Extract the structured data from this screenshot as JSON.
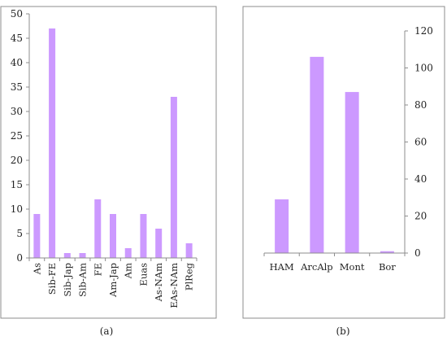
{
  "chart_data": [
    {
      "type": "bar",
      "panel_label": "(a)",
      "categories": [
        "As",
        "Sib-FE",
        "Sib-Jap",
        "Sib-Am",
        "FE",
        "Am-Jap",
        "Am",
        "Euas",
        "As-NAm",
        "EAs-NAm",
        "PlReg"
      ],
      "values": [
        9,
        47,
        1,
        1,
        12,
        9,
        2,
        9,
        6,
        33,
        3
      ],
      "yticks": [
        0,
        5,
        10,
        15,
        20,
        25,
        30,
        35,
        40,
        45,
        50
      ],
      "ylim": [
        0,
        50
      ],
      "y_axis_side": "left",
      "bar_color": "#cc99ff",
      "grid": false
    },
    {
      "type": "bar",
      "panel_label": "(b)",
      "categories": [
        "HAM",
        "ArcAlp",
        "Mont",
        "Bor"
      ],
      "values": [
        29,
        106,
        87,
        1
      ],
      "yticks": [
        0,
        20,
        40,
        60,
        80,
        100,
        120
      ],
      "ylim": [
        0,
        120
      ],
      "y_axis_side": "right",
      "bar_color": "#cc99ff",
      "grid": false
    }
  ]
}
